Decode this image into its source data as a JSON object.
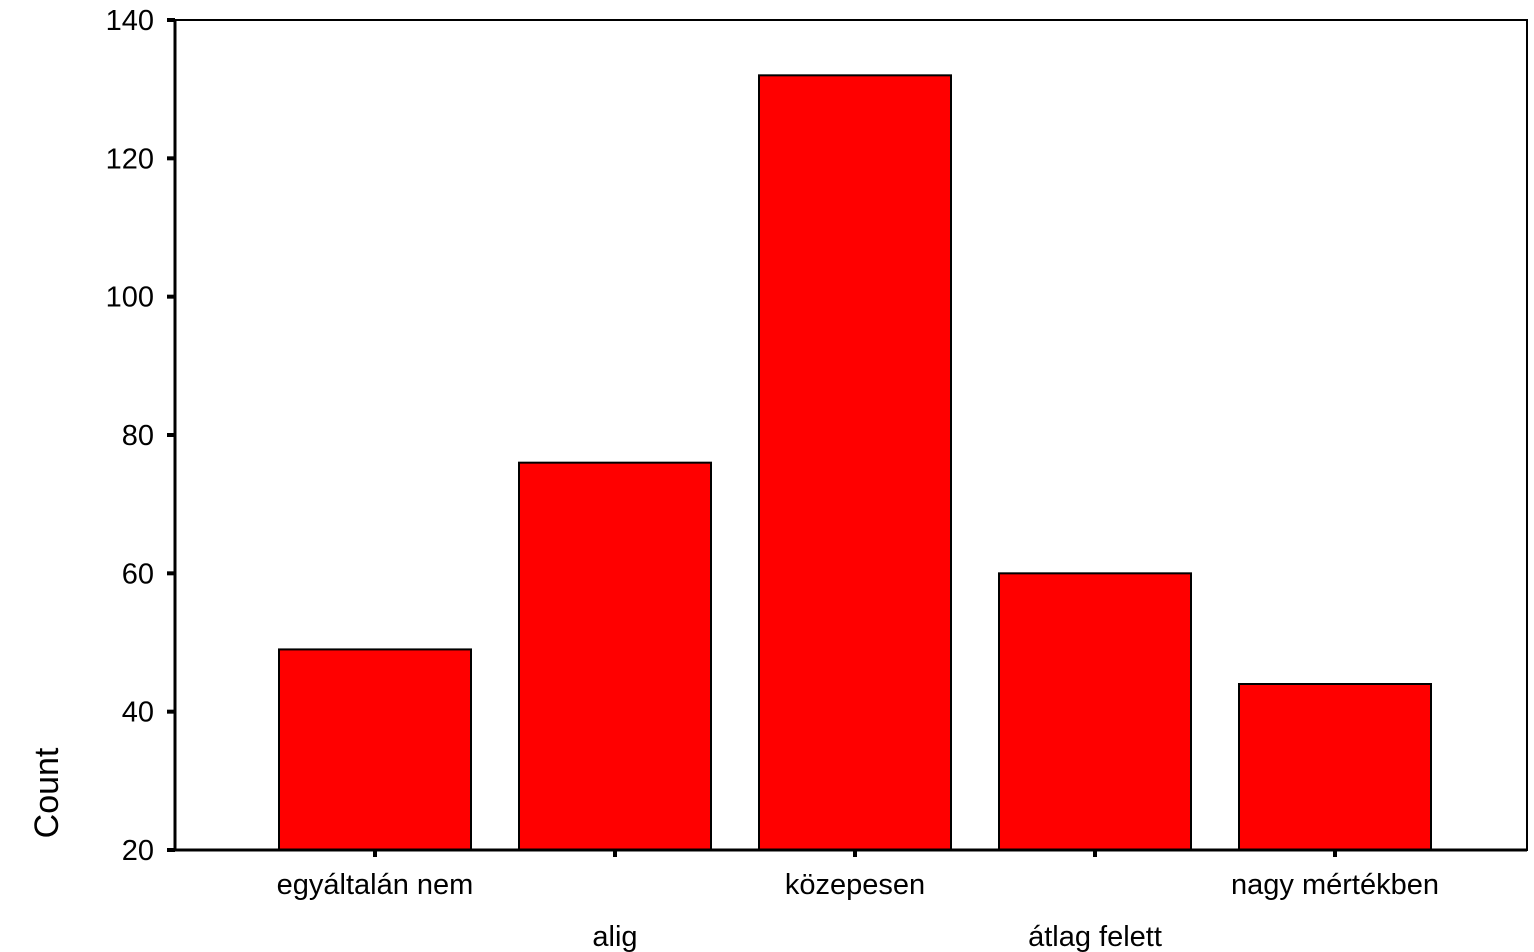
{
  "chart_data": {
    "type": "bar",
    "title": "",
    "xlabel": "",
    "ylabel": "Count",
    "categories": [
      "egyáltalán nem",
      "alig",
      "közepesen",
      "átlag felett",
      "nagy mértékben"
    ],
    "values": [
      49,
      76,
      132,
      60,
      44
    ],
    "ylim": [
      20,
      140
    ],
    "yticks": [
      20,
      40,
      60,
      80,
      100,
      120,
      140
    ],
    "bar_color": "#ff0000",
    "grid": false,
    "legend": "none"
  }
}
